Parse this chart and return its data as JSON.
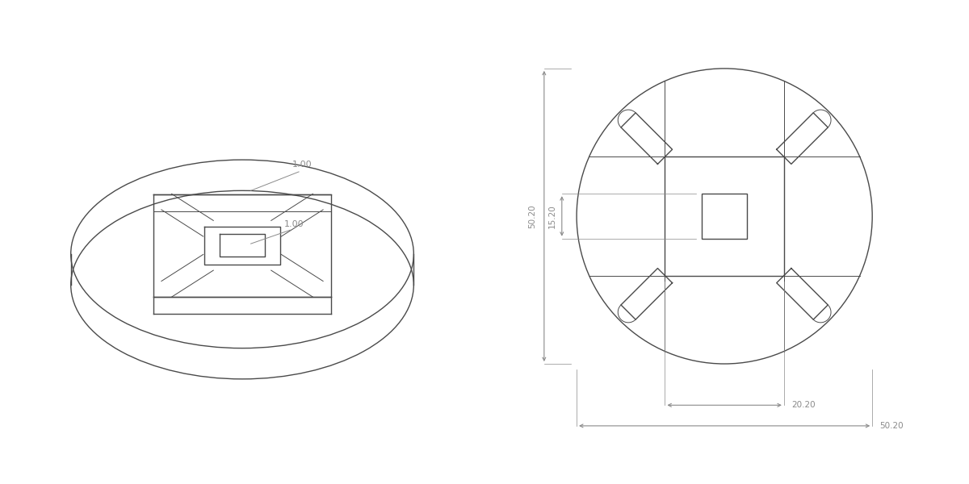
{
  "bg_color": "#ffffff",
  "line_color": "#4a4a4a",
  "dim_color": "#8a8a8a",
  "line_width": 1.0,
  "thin_line": 0.7,
  "dim_text_1": "1.00",
  "dim_text_2": "1.00",
  "dim_50_20_h": "50.20",
  "dim_20_20_h": "20.20",
  "dim_50_20_v": "50.20",
  "dim_15_20_v": "15.20"
}
